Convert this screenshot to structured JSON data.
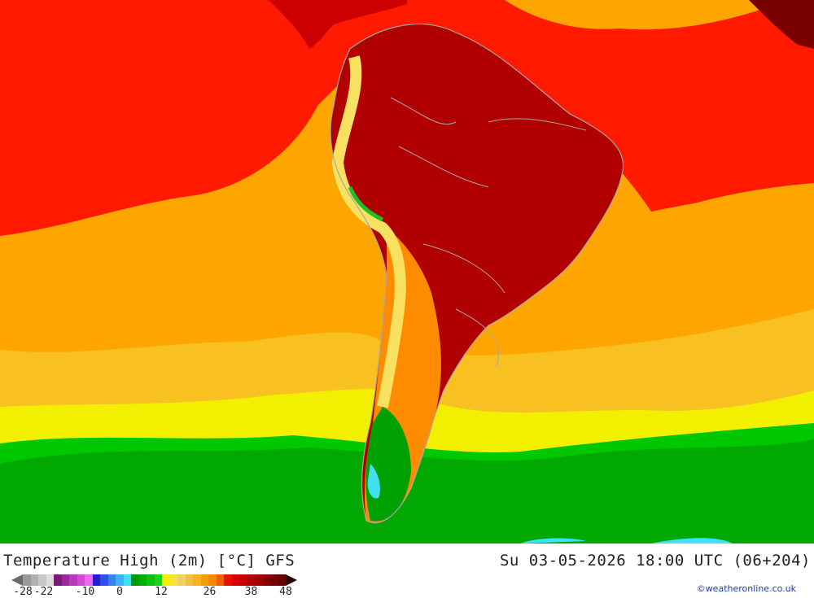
{
  "title": "Temperature High (2m) [°C] GFS",
  "datetime": "Su 03-05-2026 18:00 UTC (06+204)",
  "credit": "©weatheronline.co.uk",
  "legend": {
    "ticks": [
      {
        "label": "-28",
        "value": -28
      },
      {
        "label": "-22",
        "value": -22
      },
      {
        "label": "-10",
        "value": -10
      },
      {
        "label": "0",
        "value": 0
      },
      {
        "label": "12",
        "value": 12
      },
      {
        "label": "26",
        "value": 26
      },
      {
        "label": "38",
        "value": 38
      },
      {
        "label": "48",
        "value": 48
      }
    ],
    "colors": [
      "#9a9a9a",
      "#b0b0b0",
      "#c8c8c8",
      "#dcdcdc",
      "#7a1a7a",
      "#9a2a9a",
      "#b83ab8",
      "#d34ad3",
      "#ee66ee",
      "#2020d0",
      "#3050ee",
      "#3a80f0",
      "#40b0f8",
      "#40e0f0",
      "#009a00",
      "#00b000",
      "#10c010",
      "#20d020",
      "#f0f000",
      "#f8e040",
      "#f0d060",
      "#f0c040",
      "#f8b020",
      "#f0a000",
      "#f88800",
      "#f06000",
      "#e81000",
      "#dd0000",
      "#c80000",
      "#b40000",
      "#a00000",
      "#8a0000",
      "#780000",
      "#640000"
    ]
  },
  "map": {
    "field": "2m temperature high",
    "colors": {
      "ocean_warm": "#ff1a00",
      "ocean_mid": "#ffa500",
      "hot_land": "#b00000",
      "cool": "#00c000",
      "cold": "#00ffff",
      "border": "#a8a8a8"
    }
  }
}
